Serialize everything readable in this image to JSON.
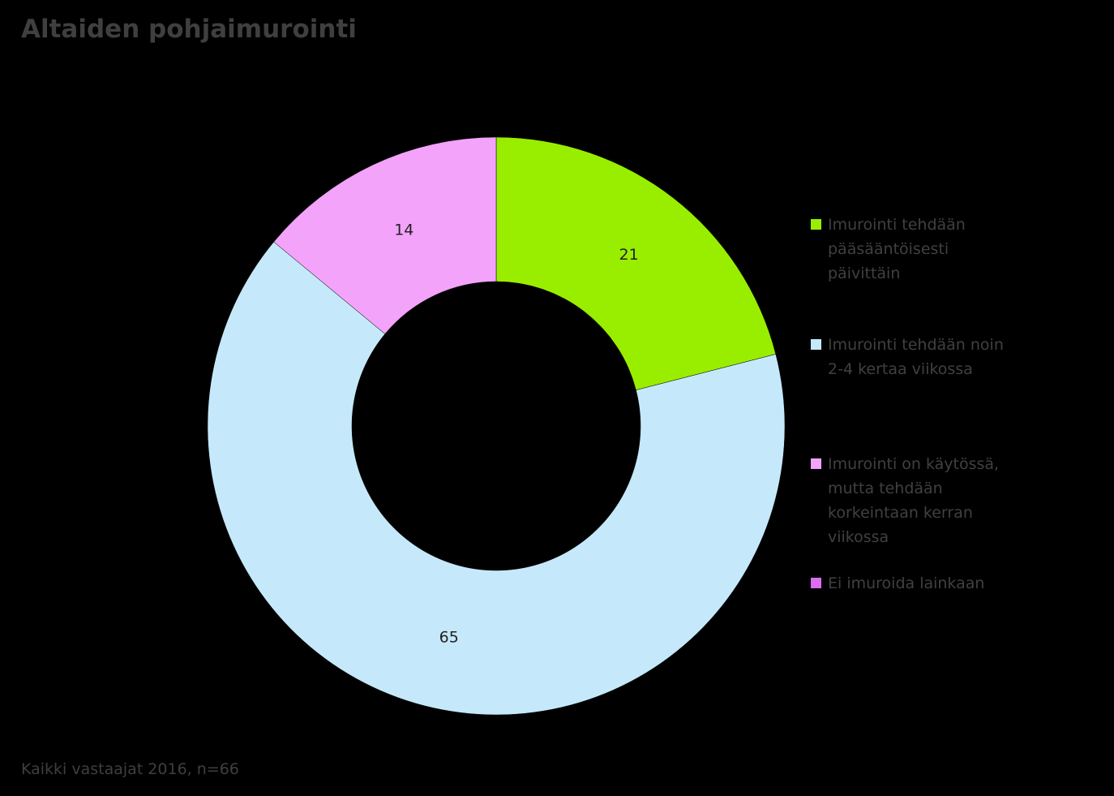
{
  "chart_data": {
    "type": "pie",
    "title": "Altaiden pohjaimurointi",
    "footnote": "Kaikki vastaajat 2016, n=66",
    "donut": true,
    "legend_position": "right",
    "series": [
      {
        "name": "Imurointi tehdään pääsääntöisesti päivittäin",
        "value": 21,
        "label": "21",
        "color": "#99EE00"
      },
      {
        "name": "Imurointi tehdään noin 2-4 kertaa viikossa",
        "value": 65,
        "label": "65",
        "color": "#C5E9FB"
      },
      {
        "name": "Imurointi on käytössä, mutta tehdään korkeintaan kerran viikossa",
        "value": 14,
        "label": "14",
        "color": "#F3A3FA"
      },
      {
        "name": "Ei imuroida lainkaan",
        "value": 0,
        "label": "",
        "color": "#DC6CF2"
      }
    ]
  }
}
